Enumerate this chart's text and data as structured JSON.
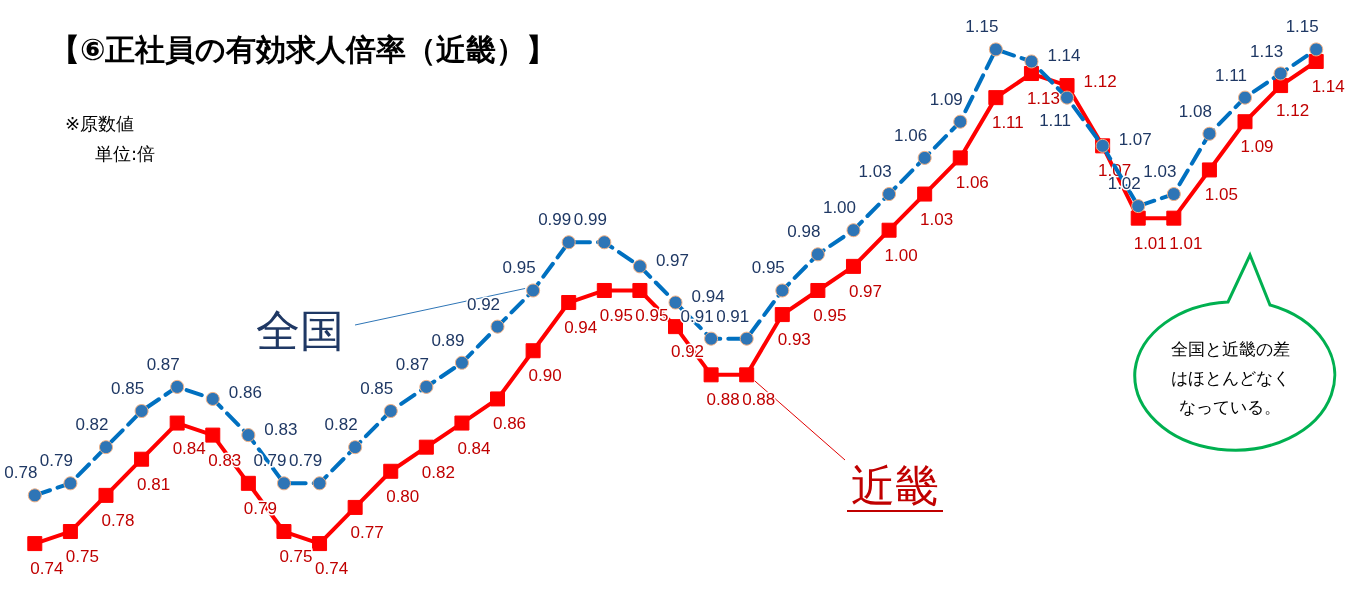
{
  "chart_data": {
    "type": "line",
    "title": "【⑥正社員の有効求人倍率（近畿）】",
    "annotations": [
      "※原数値",
      "単位:倍",
      "全国と近畿の差はほとんどなくなっている。"
    ],
    "categories": [
      null,
      null,
      null,
      null,
      null,
      null,
      null,
      null,
      null,
      null,
      null,
      null,
      null,
      null,
      null,
      null,
      null,
      null,
      null,
      null,
      null,
      null,
      null,
      null,
      null,
      null,
      null,
      null,
      null,
      null,
      null,
      null,
      null,
      null,
      null,
      null,
      null
    ],
    "series": [
      {
        "name": "全国",
        "color": "#0070c0",
        "marker": "circle",
        "line_style": "dashed",
        "value_labels": [
          "0.78",
          "0.79",
          "0.82",
          "0.85",
          "0.87",
          "0.86",
          "0.83",
          "0.79",
          "0.79",
          "0.82",
          "0.85",
          "0.87",
          "0.89",
          "0.92",
          "0.95",
          "0.99",
          "0.99",
          "0.97",
          "0.94",
          "0.91",
          "0.91",
          "0.95",
          "0.98",
          "1.00",
          "1.03",
          "1.06",
          "1.09",
          "1.15",
          "1.14",
          "1.11",
          "1.07",
          "1.02",
          "1.03",
          "1.08",
          "1.11",
          "1.13",
          "1.15"
        ],
        "values": [
          0.78,
          0.79,
          0.82,
          0.85,
          0.87,
          0.86,
          0.83,
          0.79,
          0.79,
          0.82,
          0.85,
          0.87,
          0.89,
          0.92,
          0.95,
          0.99,
          0.99,
          0.97,
          0.94,
          0.91,
          0.91,
          0.95,
          0.98,
          1.0,
          1.03,
          1.06,
          1.09,
          1.15,
          1.14,
          1.11,
          1.07,
          1.02,
          1.03,
          1.08,
          1.11,
          1.13,
          1.15
        ]
      },
      {
        "name": "近畿",
        "color": "#ff0000",
        "marker": "square",
        "line_style": "solid",
        "value_labels": [
          "0.74",
          "0.75",
          "0.78",
          "0.81",
          "0.84",
          "0.83",
          "0.79",
          "0.75",
          "0.74",
          "0.77",
          "0.80",
          "0.82",
          "0.84",
          "0.86",
          "0.90",
          "0.94",
          "0.95",
          "0.95",
          "0.92",
          "0.88",
          "0.88",
          "0.93",
          "0.95",
          "0.97",
          "1.00",
          "1.03",
          "1.06",
          "1.11",
          "1.13",
          "1.12",
          "1.07",
          "1.01",
          "1.01",
          "1.05",
          "1.09",
          "1.12",
          "1.14"
        ],
        "values": [
          0.74,
          0.75,
          0.78,
          0.81,
          0.84,
          0.83,
          0.79,
          0.75,
          0.74,
          0.77,
          0.8,
          0.82,
          0.84,
          0.86,
          0.9,
          0.94,
          0.95,
          0.95,
          0.92,
          0.88,
          0.88,
          0.93,
          0.95,
          0.97,
          1.0,
          1.03,
          1.06,
          1.11,
          1.13,
          1.12,
          1.07,
          1.01,
          1.01,
          1.05,
          1.09,
          1.12,
          1.14
        ]
      }
    ],
    "tick_labels": false
  }
}
